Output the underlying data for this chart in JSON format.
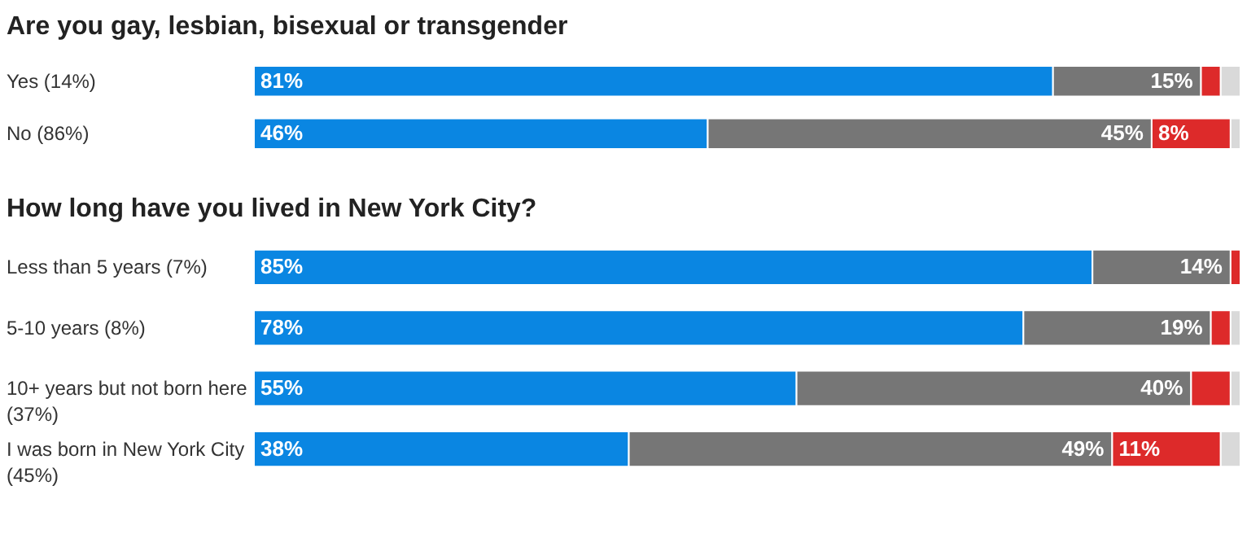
{
  "chart_data": [
    {
      "type": "bar",
      "orientation": "horizontal",
      "stacked": true,
      "title": "Are you gay, lesbian, bisexual or transgender",
      "categories": [
        "Yes (14%)",
        "No (86%)"
      ],
      "series": [
        {
          "color": "#0a86e2",
          "values": [
            81,
            46
          ],
          "value_labels": [
            "81%",
            "46%"
          ]
        },
        {
          "color": "#767676",
          "values": [
            15,
            45
          ],
          "value_labels": [
            "15%",
            "45%"
          ]
        },
        {
          "color": "#dd2a2a",
          "values": [
            2,
            8
          ],
          "value_labels": [
            null,
            "8%"
          ]
        },
        {
          "color": "#d9d9d9",
          "values": [
            2,
            1
          ],
          "value_labels": [
            null,
            null
          ]
        }
      ]
    },
    {
      "type": "bar",
      "orientation": "horizontal",
      "stacked": true,
      "title": "How long have you lived in New York City?",
      "categories": [
        "Less than 5 years (7%)",
        "5-10 years (8%)",
        "10+ years but not born here (37%)",
        "I was born in New York City (45%)"
      ],
      "series": [
        {
          "color": "#0a86e2",
          "values": [
            85,
            78,
            55,
            38
          ],
          "value_labels": [
            "85%",
            "78%",
            "55%",
            "38%"
          ]
        },
        {
          "color": "#767676",
          "values": [
            14,
            19,
            40,
            49
          ],
          "value_labels": [
            "14%",
            "19%",
            "40%",
            "49%"
          ]
        },
        {
          "color": "#dd2a2a",
          "values": [
            1,
            2,
            4,
            11
          ],
          "value_labels": [
            null,
            null,
            null,
            "11%"
          ]
        },
        {
          "color": "#d9d9d9",
          "values": [
            0,
            1,
            1,
            2
          ],
          "value_labels": [
            null,
            null,
            null,
            null
          ]
        }
      ]
    }
  ]
}
